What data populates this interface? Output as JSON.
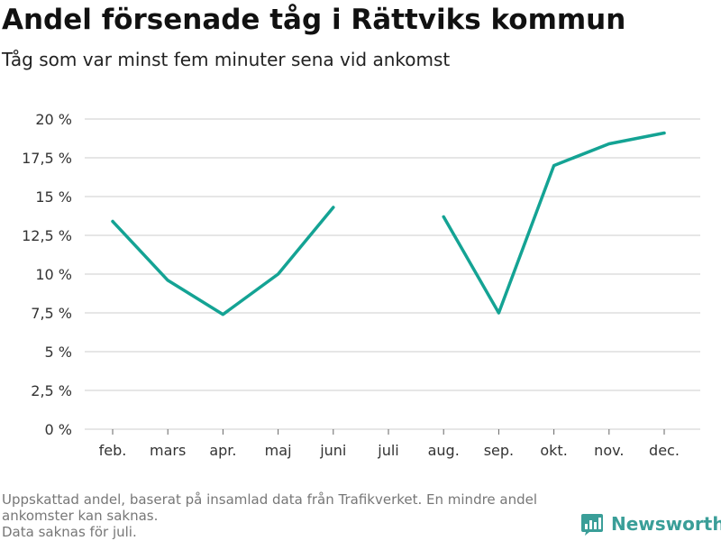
{
  "header": {
    "title": "Andel försenade tåg i Rättviks kommun",
    "subtitle": "Tåg som var minst fem minuter sena vid ankomst"
  },
  "footer": {
    "note_line1": "Uppskattad andel, baserat på insamlad data från Trafikverket. En mindre andel ankomster kan saknas.",
    "note_line2": "Data saknas för juli.",
    "brand": "Newsworthy"
  },
  "colors": {
    "line": "#14a394",
    "brand": "#3a9e98"
  },
  "chart_data": {
    "type": "line",
    "title": "Andel försenade tåg i Rättviks kommun",
    "subtitle": "Tåg som var minst fem minuter sena vid ankomst",
    "xlabel": "",
    "ylabel": "",
    "categories": [
      "feb.",
      "mars",
      "apr.",
      "maj",
      "juni",
      "juli",
      "aug.",
      "sep.",
      "okt.",
      "nov.",
      "dec."
    ],
    "values": [
      13.4,
      9.6,
      7.4,
      10.0,
      14.3,
      null,
      13.7,
      7.5,
      17.0,
      18.4,
      19.1
    ],
    "ylim": [
      0,
      20
    ],
    "yticks": [
      0,
      2.5,
      5,
      7.5,
      10,
      12.5,
      15,
      17.5,
      20
    ],
    "ytick_labels": [
      "0 %",
      "2,5 %",
      "5 %",
      "7,5 %",
      "10 %",
      "12,5 %",
      "15 %",
      "17,5 %",
      "20 %"
    ],
    "grid": true,
    "legend": "none"
  }
}
